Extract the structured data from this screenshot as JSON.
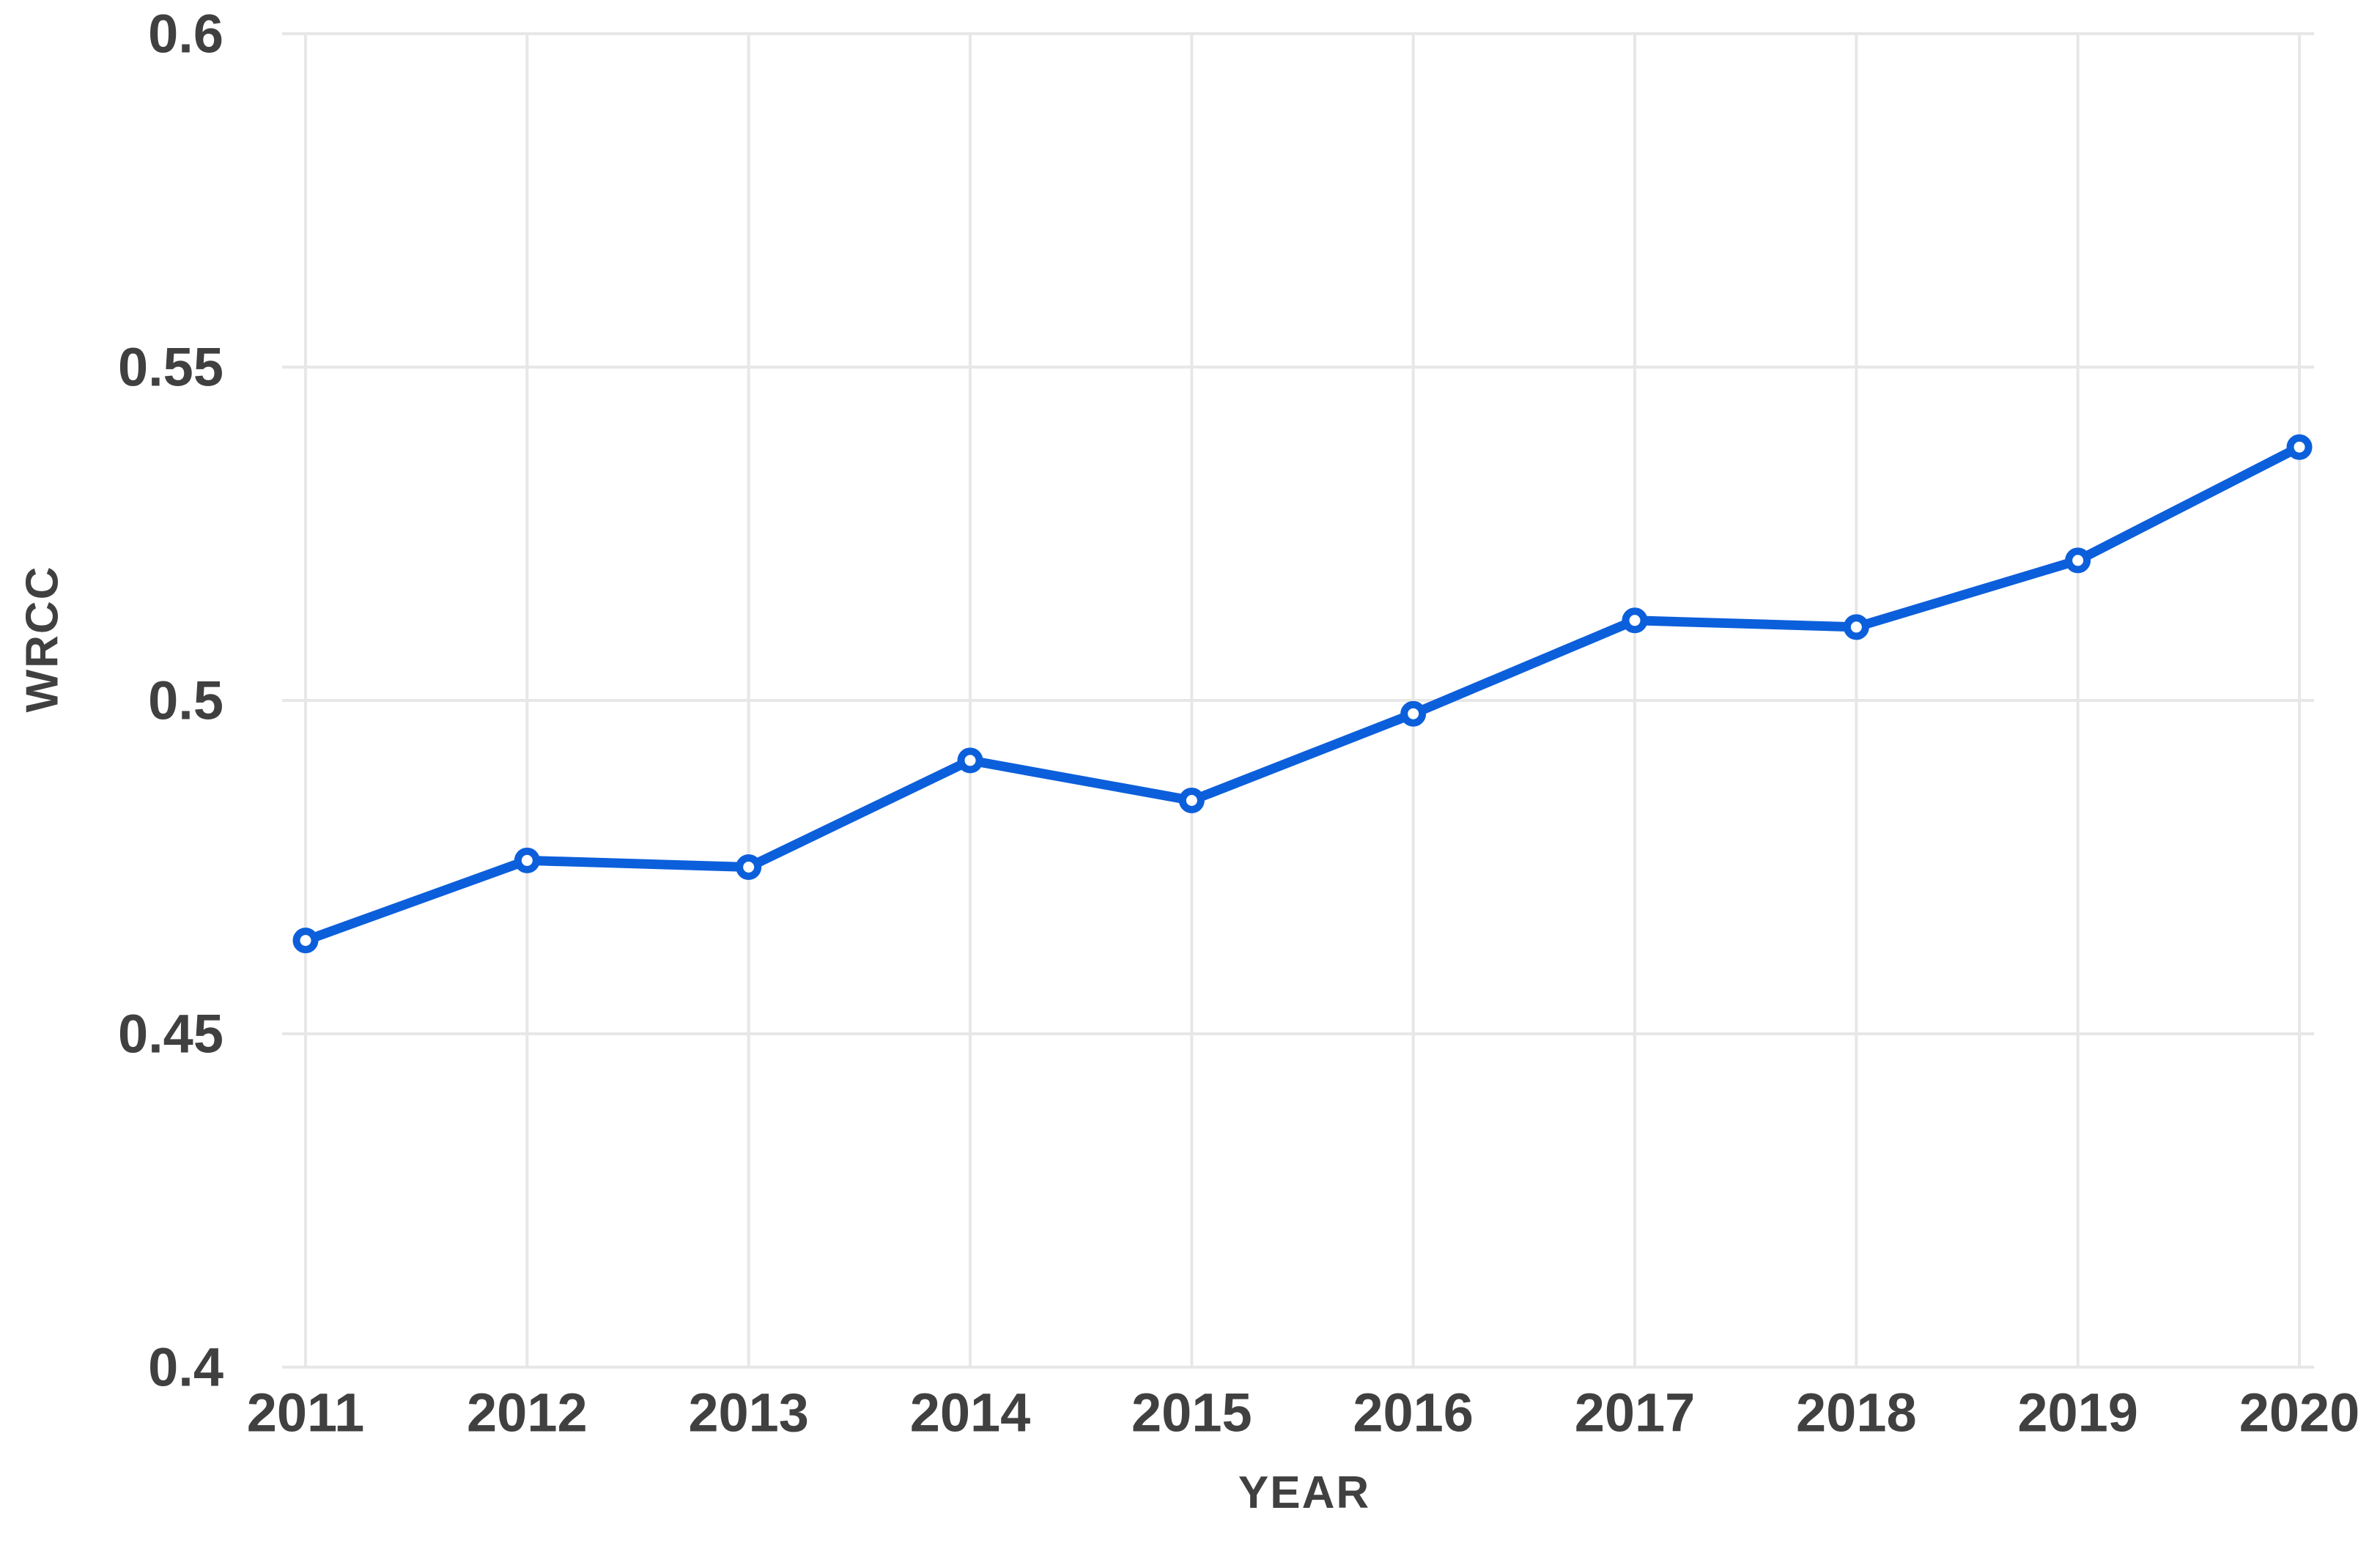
{
  "chart_data": {
    "type": "line",
    "title": "",
    "xlabel": "YEAR",
    "ylabel": "WRCC",
    "categories": [
      "2011",
      "2012",
      "2013",
      "2014",
      "2015",
      "2016",
      "2017",
      "2018",
      "2019",
      "2020"
    ],
    "values": [
      0.464,
      0.476,
      0.475,
      0.491,
      0.485,
      0.498,
      0.512,
      0.511,
      0.521,
      0.538
    ],
    "ylim": [
      0.4,
      0.6
    ],
    "y_ticks": [
      0.4,
      0.45,
      0.5,
      0.55,
      0.6
    ],
    "y_tick_labels": [
      "0.4",
      "0.45",
      "0.5",
      "0.55",
      "0.6"
    ],
    "grid": true,
    "legend": false,
    "marker_style": "open-circle",
    "colors": {
      "line": "#0c5fdb",
      "marker_fill": "#ffffff",
      "gridline": "#e7e7e7",
      "label_text": "#404040"
    }
  }
}
